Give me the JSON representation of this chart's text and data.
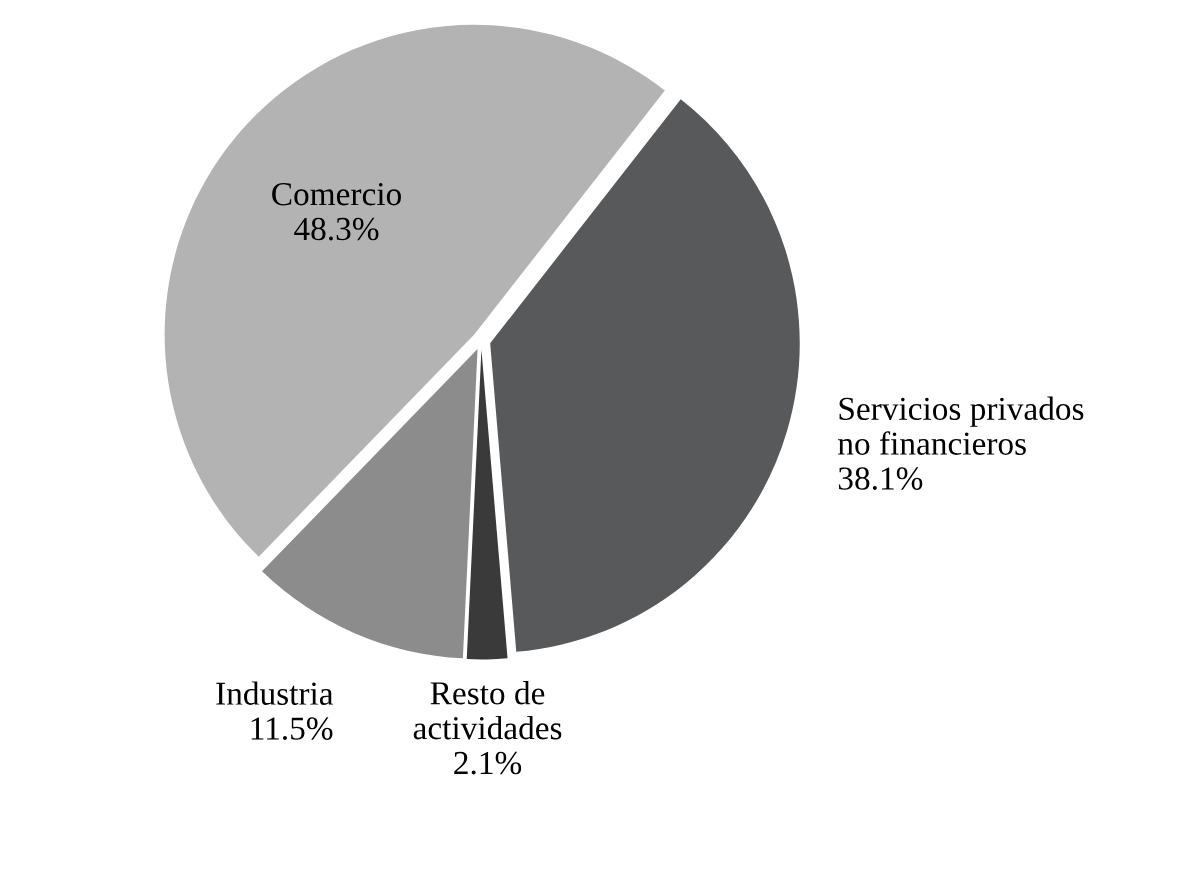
{
  "chart_data": {
    "type": "pie",
    "categories": [
      "Servicios privados\nno financieros",
      "Resto de\nactividades",
      "Industria",
      "Comercio"
    ],
    "values": [
      38.1,
      2.1,
      11.5,
      48.3
    ],
    "value_labels": [
      "38.1%",
      "2.1%",
      "11.5%",
      "48.3%"
    ],
    "colors": [
      "#58595b",
      "#3a3a3a",
      "#8c8c8c",
      "#b3b3b3"
    ]
  }
}
